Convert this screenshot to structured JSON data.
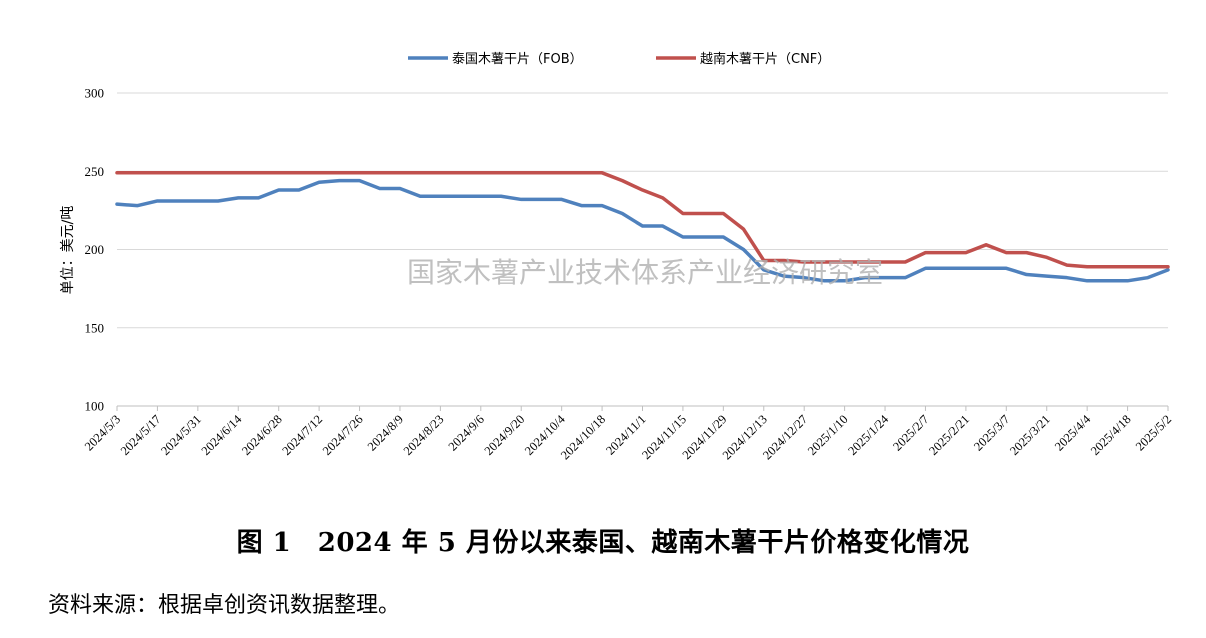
{
  "chart_data": {
    "type": "line",
    "ylabel": "单位：美元/吨",
    "ylim": [
      100,
      300
    ],
    "yticks": [
      100,
      150,
      200,
      250,
      300
    ],
    "grid": true,
    "legend_position": "top-center",
    "x_tick_labels": [
      "2024/5/3",
      "2024/5/17",
      "2024/5/31",
      "2024/6/14",
      "2024/6/28",
      "2024/7/12",
      "2024/7/26",
      "2024/8/9",
      "2024/8/23",
      "2024/9/6",
      "2024/9/20",
      "2024/10/4",
      "2024/10/18",
      "2024/11/1",
      "2024/11/15",
      "2024/11/29",
      "2024/12/13",
      "2024/12/27",
      "2025/1/10",
      "2025/1/24",
      "2025/2/7",
      "2025/2/21",
      "2025/3/7",
      "2025/3/21",
      "2025/4/4",
      "2025/4/18",
      "2025/5/2"
    ],
    "x": [
      "2024/5/3",
      "2024/5/10",
      "2024/5/17",
      "2024/5/24",
      "2024/5/31",
      "2024/6/7",
      "2024/6/14",
      "2024/6/21",
      "2024/6/28",
      "2024/7/5",
      "2024/7/12",
      "2024/7/19",
      "2024/7/26",
      "2024/8/2",
      "2024/8/9",
      "2024/8/16",
      "2024/8/23",
      "2024/8/30",
      "2024/9/6",
      "2024/9/13",
      "2024/9/20",
      "2024/9/27",
      "2024/10/4",
      "2024/10/11",
      "2024/10/18",
      "2024/10/25",
      "2024/11/1",
      "2024/11/8",
      "2024/11/15",
      "2024/11/22",
      "2024/11/29",
      "2024/12/6",
      "2024/12/13",
      "2024/12/20",
      "2024/12/27",
      "2025/1/3",
      "2025/1/10",
      "2025/1/17",
      "2025/1/24",
      "2025/1/31",
      "2025/2/7",
      "2025/2/14",
      "2025/2/21",
      "2025/2/28",
      "2025/3/7",
      "2025/3/14",
      "2025/3/21",
      "2025/3/28",
      "2025/4/4",
      "2025/4/11",
      "2025/4/18",
      "2025/4/25",
      "2025/5/2"
    ],
    "series": [
      {
        "name": "泰国木薯干片（FOB）",
        "color": "#4f81bd",
        "values": [
          229,
          228,
          231,
          231,
          231,
          231,
          233,
          233,
          238,
          238,
          243,
          244,
          244,
          239,
          239,
          234,
          234,
          234,
          234,
          234,
          232,
          232,
          232,
          228,
          228,
          223,
          215,
          215,
          208,
          208,
          208,
          200,
          187,
          183,
          182,
          180,
          180,
          182,
          182,
          182,
          188,
          188,
          188,
          188,
          188,
          184,
          183,
          182,
          180,
          180,
          180,
          182,
          187
        ]
      },
      {
        "name": "越南木薯干片（CNF）",
        "color": "#c0504d",
        "values": [
          249,
          249,
          249,
          249,
          249,
          249,
          249,
          249,
          249,
          249,
          249,
          249,
          249,
          249,
          249,
          249,
          249,
          249,
          249,
          249,
          249,
          249,
          249,
          249,
          249,
          244,
          238,
          233,
          223,
          223,
          223,
          213,
          193,
          193,
          192,
          192,
          192,
          192,
          192,
          192,
          198,
          198,
          198,
          203,
          198,
          198,
          195,
          190,
          189,
          189,
          189,
          189,
          189
        ]
      }
    ]
  },
  "watermark": "国家木薯产业技术体系产业经济研究室",
  "caption": "图 1　2024 年 5 月份以来泰国、越南木薯干片价格变化情况",
  "source": "资料来源：根据卓创资讯数据整理。"
}
